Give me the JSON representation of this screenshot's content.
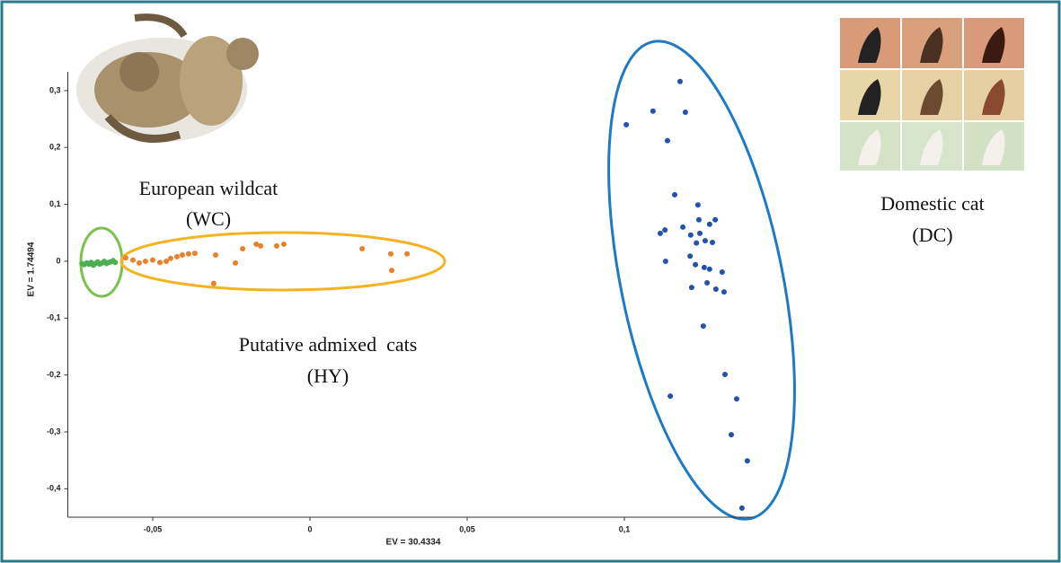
{
  "chart_data": {
    "type": "scatter",
    "x_label": "EV = 30.4334",
    "y_label": "EV = 1.74494",
    "xlim": [
      -0.077,
      0.141
    ],
    "ylim": [
      -0.45,
      0.333
    ],
    "xticks": [
      {
        "value": -0.05,
        "label": "-0,05"
      },
      0,
      {
        "value": 0.05,
        "label": "0,05"
      },
      {
        "value": 0.1,
        "label": "0,1"
      }
    ],
    "yticks": [
      {
        "value": 0.3,
        "label": "0,3"
      },
      {
        "value": 0.2,
        "label": "0,2"
      },
      {
        "value": 0.1,
        "label": "0,1"
      },
      0,
      {
        "value": -0.1,
        "label": "-0,1"
      },
      {
        "value": -0.2,
        "label": "-0,2"
      },
      {
        "value": -0.3,
        "label": "-0,3"
      },
      {
        "value": -0.4,
        "label": "-0,4"
      }
    ],
    "annotations": [
      "European wildcat",
      "(WC)",
      "Putative admixed  cats",
      "(HY)",
      "Domestic cat",
      "(DC)"
    ],
    "series": [
      {
        "color": "#4caf50",
        "x": [
          -0.0725,
          -0.0718,
          -0.071,
          -0.0703,
          -0.0696,
          -0.0689,
          -0.0682,
          -0.0675,
          -0.0668,
          -0.0661,
          -0.0654,
          -0.0647,
          -0.064,
          -0.0633,
          -0.0626,
          -0.0619
        ],
        "values": [
          -0.004,
          -0.006,
          -0.003,
          -0.005,
          -0.002,
          -0.007,
          -0.004,
          -0.001,
          -0.005,
          -0.003,
          0.0,
          -0.004,
          -0.002,
          -0.001,
          0.001,
          -0.002
        ]
      },
      {
        "color": "#e8822a",
        "x": [
          -0.0586,
          -0.0563,
          -0.0543,
          -0.0523,
          -0.05,
          -0.0477,
          -0.0457,
          -0.0443,
          -0.0423,
          -0.0406,
          -0.0386,
          -0.0366,
          -0.03,
          -0.0237,
          -0.0306,
          -0.0214,
          -0.0171,
          -0.0157,
          -0.0106,
          -0.0083,
          0.0166,
          0.0257,
          0.026,
          0.0309
        ],
        "values": [
          0.006,
          0.002,
          -0.003,
          0.0,
          0.002,
          -0.002,
          0.0,
          0.005,
          0.008,
          0.011,
          0.013,
          0.014,
          0.011,
          -0.003,
          -0.039,
          0.022,
          0.03,
          0.027,
          0.027,
          0.03,
          0.022,
          0.013,
          -0.016,
          0.013
        ]
      },
      {
        "color": "#2452a8",
        "x": [
          0.1177,
          0.1006,
          0.1091,
          0.1194,
          0.1137,
          0.116,
          0.1234,
          0.1114,
          0.1129,
          0.1186,
          0.1211,
          0.1237,
          0.124,
          0.1271,
          0.1289,
          0.1229,
          0.1257,
          0.128,
          0.1131,
          0.1226,
          0.1254,
          0.1271,
          0.1209,
          0.1263,
          0.1214,
          0.1311,
          0.1317,
          0.1291,
          0.1251,
          0.1146,
          0.132,
          0.1357,
          0.134,
          0.1391,
          0.1374
        ],
        "values": [
          0.316,
          0.24,
          0.264,
          0.262,
          0.212,
          0.117,
          0.099,
          0.049,
          0.055,
          0.06,
          0.046,
          0.073,
          0.049,
          0.065,
          0.073,
          0.032,
          0.036,
          0.033,
          0.0,
          -0.006,
          -0.011,
          -0.014,
          0.009,
          -0.038,
          -0.046,
          -0.019,
          -0.054,
          -0.049,
          -0.114,
          -0.237,
          -0.199,
          -0.242,
          -0.305,
          -0.351,
          -0.434
        ]
      }
    ]
  }
}
